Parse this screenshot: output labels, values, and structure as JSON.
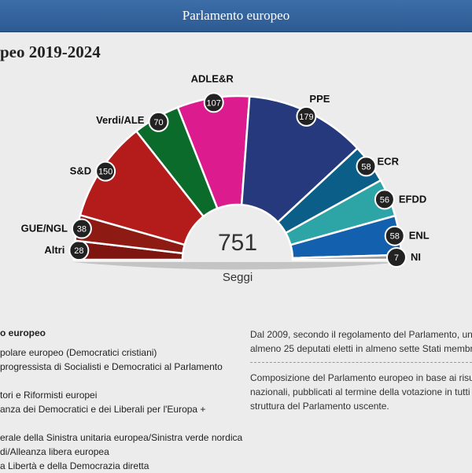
{
  "header": {
    "title": "Parlamento europeo"
  },
  "subtitle": "peo 2019-2024",
  "chart_data": {
    "type": "parliament-semicircle",
    "total_seats": 751,
    "total_label": "Seggi",
    "series": [
      {
        "name": "Altri",
        "seats": 28,
        "color": "#7e1510"
      },
      {
        "name": "GUE/NGL",
        "seats": 38,
        "color": "#8e1a14"
      },
      {
        "name": "S&D",
        "seats": 150,
        "color": "#b41b1b"
      },
      {
        "name": "Verdi/ALE",
        "seats": 70,
        "color": "#0b6b2b"
      },
      {
        "name": "ADLE&R",
        "seats": 107,
        "color": "#dc1b8e"
      },
      {
        "name": "PPE",
        "seats": 179,
        "color": "#26397c"
      },
      {
        "name": "ECR",
        "seats": 58,
        "color": "#0b5e87"
      },
      {
        "name": "EFDD",
        "seats": 56,
        "color": "#2da4a6"
      },
      {
        "name": "ENL",
        "seats": 58,
        "color": "#1260ae"
      },
      {
        "name": "NI",
        "seats": 7,
        "color": "#9a9a9a"
      }
    ]
  },
  "legend": {
    "title": "o europeo",
    "items": [
      "polare europeo (Democratici cristiani)",
      "progressista di Socialisti e Democratici al Parlamento",
      "",
      "tori e Riformisti europei",
      "anza dei Democratici e dei Liberali per l'Europa +",
      "",
      "erale della Sinistra unitaria europea/Sinistra verde nordica",
      "di/Alleanza libera europea",
      "a Libertà e della Democrazia diretta"
    ]
  },
  "notes": {
    "first": [
      "Dal 2009, secondo il regolamento del Parlamento, un",
      "almeno 25 deputati eletti in almeno sette Stati membr"
    ],
    "second": [
      "Composizione del Parlamento europeo in base ai risu",
      "nazionali, pubblicati al termine della votazione in tutti",
      "struttura del Parlamento uscente."
    ]
  }
}
